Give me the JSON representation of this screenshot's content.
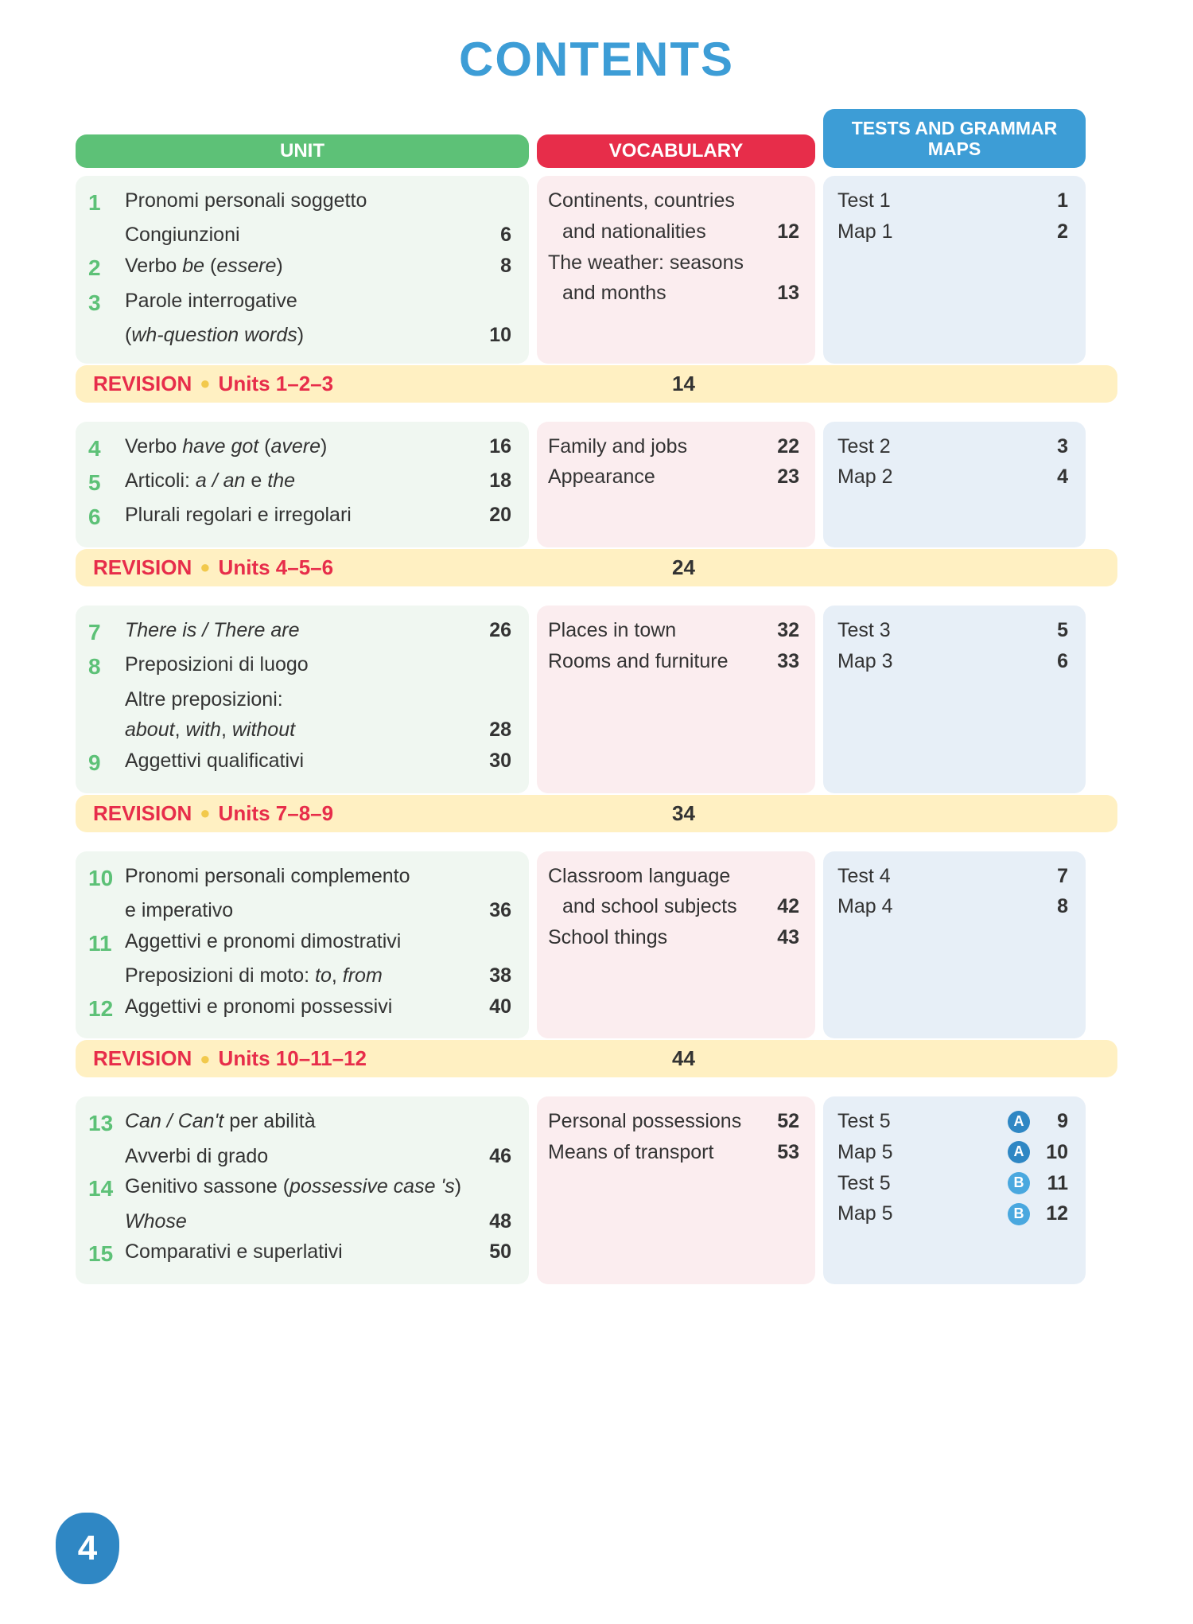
{
  "title": "CONTENTS",
  "page_number": "4",
  "headers": {
    "unit": "UNIT",
    "vocab": "VOCABULARY",
    "tests": "TESTS AND GRAMMAR MAPS"
  },
  "colors": {
    "title": "#3d9dd6",
    "unit_header": "#5dc177",
    "vocab_header": "#e72d4a",
    "tests_header": "#3d9dd6",
    "revision_bg": "#fff0c2",
    "revision_text": "#e72d4a",
    "unit_bg": "#f0f7f1",
    "vocab_bg": "#fbedef",
    "tests_bg": "#e7eff7",
    "badge_a": "#2f87c4",
    "badge_b": "#4aa8df",
    "page_badge": "#2f87c4"
  },
  "sections": [
    {
      "units": [
        {
          "num": "1",
          "lines": [
            {
              "text": "Pronomi personali soggetto"
            },
            {
              "text": "Congiunzioni",
              "page": "6"
            }
          ]
        },
        {
          "num": "2",
          "lines": [
            {
              "html": "Verbo <span class=\"italic\">be</span> (<span class=\"italic\">essere</span>)",
              "page": "8"
            }
          ]
        },
        {
          "num": "3",
          "lines": [
            {
              "text": "Parole interrogative"
            },
            {
              "html": "(<span class=\"italic\">wh-question words</span>)",
              "page": "10"
            }
          ]
        }
      ],
      "vocab": [
        {
          "text": "Continents, countries"
        },
        {
          "text": "and nationalities",
          "indent": true,
          "page": "12"
        },
        {
          "text": "The weather: seasons"
        },
        {
          "text": "and months",
          "indent": true,
          "page": "13"
        }
      ],
      "tests": [
        {
          "label": "Test 1",
          "page": "1"
        },
        {
          "label": "Map 1",
          "page": "2"
        }
      ],
      "revision": {
        "label": "REVISION",
        "units": "Units 1–2–3",
        "page": "14"
      }
    },
    {
      "units": [
        {
          "num": "4",
          "lines": [
            {
              "html": "Verbo <span class=\"italic\">have got</span> (<span class=\"italic\">avere</span>)",
              "page": "16"
            }
          ]
        },
        {
          "num": "5",
          "lines": [
            {
              "html": "Articoli: <span class=\"italic\">a / an</span> e <span class=\"italic\">the</span>",
              "page": "18"
            }
          ]
        },
        {
          "num": "6",
          "lines": [
            {
              "text": "Plurali regolari e irregolari",
              "page": "20"
            }
          ]
        }
      ],
      "vocab": [
        {
          "text": "Family and jobs",
          "page": "22"
        },
        {
          "text": "Appearance",
          "page": "23"
        }
      ],
      "tests": [
        {
          "label": "Test 2",
          "page": "3"
        },
        {
          "label": "Map 2",
          "page": "4"
        }
      ],
      "revision": {
        "label": "REVISION",
        "units": "Units 4–5–6",
        "page": "24"
      }
    },
    {
      "units": [
        {
          "num": "7",
          "lines": [
            {
              "html": "<span class=\"italic\">There is / There are</span>",
              "page": "26"
            }
          ]
        },
        {
          "num": "8",
          "lines": [
            {
              "text": "Preposizioni di luogo"
            },
            {
              "text": "Altre preposizioni:"
            },
            {
              "html": "<span class=\"italic\">about</span>, <span class=\"italic\">with</span>, <span class=\"italic\">without</span>",
              "page": "28"
            }
          ]
        },
        {
          "num": "9",
          "lines": [
            {
              "text": "Aggettivi qualificativi",
              "page": "30"
            }
          ]
        }
      ],
      "vocab": [
        {
          "text": "Places in town",
          "page": "32"
        },
        {
          "text": "Rooms and furniture",
          "page": "33"
        }
      ],
      "tests": [
        {
          "label": "Test 3",
          "page": "5"
        },
        {
          "label": "Map 3",
          "page": "6"
        }
      ],
      "revision": {
        "label": "REVISION",
        "units": "Units 7–8–9",
        "page": "34"
      }
    },
    {
      "units": [
        {
          "num": "10",
          "lines": [
            {
              "text": "Pronomi personali complemento"
            },
            {
              "text": "e imperativo",
              "page": "36"
            }
          ]
        },
        {
          "num": "11",
          "lines": [
            {
              "text": "Aggettivi e pronomi dimostrativi"
            },
            {
              "html": "Preposizioni di moto: <span class=\"italic\">to</span>, <span class=\"italic\">from</span>",
              "page": "38"
            }
          ]
        },
        {
          "num": "12",
          "lines": [
            {
              "text": "Aggettivi e pronomi possessivi",
              "page": "40"
            }
          ]
        }
      ],
      "vocab": [
        {
          "text": "Classroom language"
        },
        {
          "text": "and school subjects",
          "indent": true,
          "page": "42"
        },
        {
          "text": "School things",
          "page": "43"
        }
      ],
      "tests": [
        {
          "label": "Test 4",
          "page": "7"
        },
        {
          "label": "Map 4",
          "page": "8"
        }
      ],
      "revision": {
        "label": "REVISION",
        "units": "Units 10–11–12",
        "page": "44"
      }
    },
    {
      "units": [
        {
          "num": "13",
          "lines": [
            {
              "html": "<span class=\"italic\">Can / Can't</span> per abilità"
            },
            {
              "text": "Avverbi di grado",
              "page": "46"
            }
          ]
        },
        {
          "num": "14",
          "lines": [
            {
              "html": "Genitivo sassone (<span class=\"italic\">possessive case 's</span>)"
            },
            {
              "html": "<span class=\"italic\">Whose</span>",
              "page": "48"
            }
          ]
        },
        {
          "num": "15",
          "lines": [
            {
              "text": "Comparativi e superlativi",
              "page": "50"
            }
          ]
        }
      ],
      "vocab": [
        {
          "text": "Personal possessions",
          "page": "52"
        },
        {
          "text": "Means of transport",
          "page": "53"
        }
      ],
      "tests": [
        {
          "label": "Test 5",
          "badge": "A",
          "page": "9"
        },
        {
          "label": "Map 5",
          "badge": "A",
          "page": "10"
        },
        {
          "label": "Test 5",
          "badge": "B",
          "page": "11"
        },
        {
          "label": "Map 5",
          "badge": "B",
          "page": "12"
        }
      ]
    }
  ]
}
